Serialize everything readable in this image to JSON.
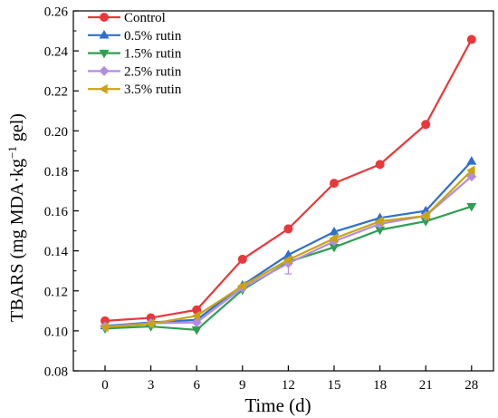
{
  "chart_data": {
    "type": "line",
    "xlabel": "Time  (d)",
    "ylabel": "TBARS (mg MDA·kg",
    "ylabel_sup": "−1",
    "ylabel_tail": " gel)",
    "categories": [
      "0",
      "3",
      "6",
      "9",
      "12",
      "15",
      "18",
      "21",
      "28"
    ],
    "yticks": [
      "0.08",
      "0.10",
      "0.12",
      "0.14",
      "0.16",
      "0.18",
      "0.20",
      "0.22",
      "0.24",
      "0.26"
    ],
    "ylim": [
      0.08,
      0.26
    ],
    "grid": false,
    "legend_position": "top-left",
    "series": [
      {
        "name": "Control",
        "color": "#e8383b",
        "marker": "circle",
        "values": [
          0.105,
          0.1065,
          0.1105,
          0.1358,
          0.151,
          0.1738,
          0.1832,
          0.2032,
          0.2457
        ]
      },
      {
        "name": "0.5% rutin",
        "color": "#2e6fce",
        "marker": "triangle-up",
        "values": [
          0.1025,
          0.1042,
          0.1055,
          0.1228,
          0.138,
          0.1495,
          0.1565,
          0.16,
          0.1848
        ]
      },
      {
        "name": "1.5% rutin",
        "color": "#2e9e52",
        "marker": "triangle-down",
        "values": [
          0.1012,
          0.1022,
          0.1005,
          0.1205,
          0.1345,
          0.1418,
          0.1505,
          0.1548,
          0.1622
        ]
      },
      {
        "name": "2.5% rutin",
        "color": "#b38de0",
        "marker": "diamond",
        "values": [
          0.1022,
          0.1038,
          0.1042,
          0.1215,
          0.1338,
          0.1448,
          0.1535,
          0.1575,
          0.1772
        ]
      },
      {
        "name": "3.5% rutin",
        "color": "#c9a40f",
        "marker": "triangle-left",
        "values": [
          0.1018,
          0.1035,
          0.1075,
          0.1225,
          0.1355,
          0.1462,
          0.1548,
          0.1575,
          0.1802
        ]
      }
    ]
  }
}
